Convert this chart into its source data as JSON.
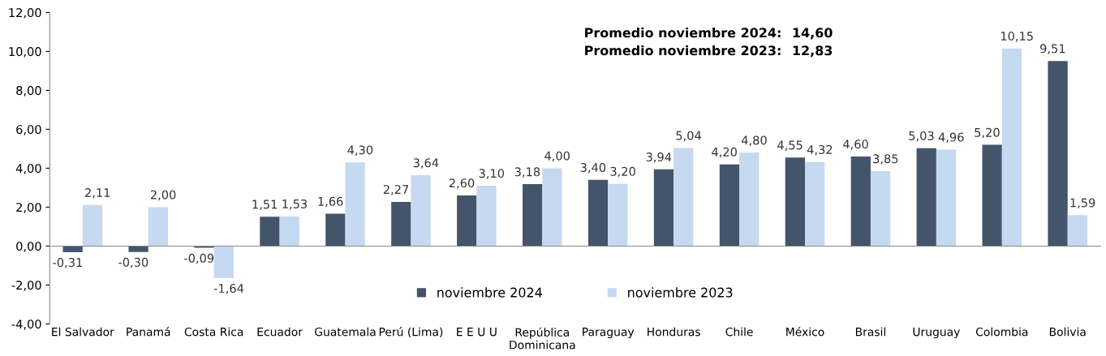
{
  "chart_data": {
    "type": "bar",
    "categories": [
      "El Salvador",
      "Panamá",
      "Costa Rica",
      "Ecuador",
      "Guatemala",
      "Perú (Lima)",
      "E E U U",
      "República\nDominicana",
      "Paraguay",
      "Honduras",
      "Chile",
      "México",
      "Brasil",
      "Uruguay",
      "Colombia",
      "Bolivia"
    ],
    "series": [
      {
        "name": "noviembre 2024",
        "color": "#44546a",
        "values": [
          -0.31,
          -0.3,
          -0.09,
          1.51,
          1.66,
          2.27,
          2.6,
          3.18,
          3.4,
          3.94,
          4.2,
          4.55,
          4.6,
          5.03,
          5.2,
          9.51
        ],
        "value_labels": [
          "-0,31",
          "-0,30",
          "-0,09",
          "1,51",
          "1,66",
          "2,27",
          "2,60",
          "3,18",
          "3,40",
          "3,94",
          "4,20",
          "4,55",
          "4,60",
          "5,03",
          "5,20",
          "9,51"
        ]
      },
      {
        "name": "noviembre 2023",
        "color": "#c5d9f1",
        "values": [
          2.11,
          2.0,
          -1.64,
          1.53,
          4.3,
          3.64,
          3.1,
          4.0,
          3.2,
          5.04,
          4.8,
          4.32,
          3.85,
          4.96,
          10.15,
          1.59
        ],
        "value_labels": [
          "2,11",
          "2,00",
          "-1,64",
          "1,53",
          "4,30",
          "3,64",
          "3,10",
          "4,00",
          "3,20",
          "5,04",
          "4,80",
          "4,32",
          "3,85",
          "4,96",
          "10,15",
          "1,59"
        ]
      }
    ],
    "ylim": [
      -4,
      12
    ],
    "yticks": [
      {
        "value": -4,
        "label": "-4,00"
      },
      {
        "value": -2,
        "label": "-2,00"
      },
      {
        "value": 0,
        "label": "0,00"
      },
      {
        "value": 2,
        "label": "2,00"
      },
      {
        "value": 4,
        "label": "4,00"
      },
      {
        "value": 6,
        "label": "6,00"
      },
      {
        "value": 8,
        "label": "8,00"
      },
      {
        "value": 10,
        "label": "10,00"
      },
      {
        "value": 12,
        "label": "12,00"
      }
    ],
    "annotations": [
      "Promedio noviembre 2024:",
      "14,60",
      "Promedio noviembre 2023:",
      "12,83"
    ],
    "legend": "bottom"
  }
}
